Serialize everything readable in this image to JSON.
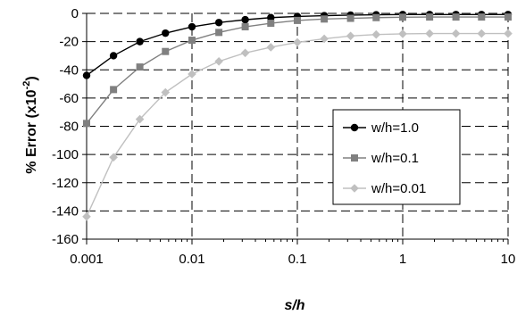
{
  "chart_data": {
    "type": "line",
    "xscale": "log",
    "xlim": [
      0.001,
      10
    ],
    "ylim": [
      -160,
      0
    ],
    "xticks": [
      0.001,
      0.01,
      0.1,
      1,
      10
    ],
    "xtick_labels": [
      "0.001",
      "0.01",
      "0.1",
      "1",
      "10"
    ],
    "yticks": [
      0,
      -20,
      -40,
      -60,
      -80,
      -100,
      -120,
      -140,
      -160
    ],
    "ytick_labels": [
      "0",
      "-20",
      "-40",
      "-60",
      "-80",
      "-100",
      "-120",
      "-140",
      "-160"
    ],
    "xlabel": "s/h",
    "ylabel_prefix": "% Error (x10",
    "ylabel_sup": "-2",
    "ylabel_suffix": ")",
    "grid": true,
    "grid_style": "dashed",
    "legend_position": "center-right",
    "x": [
      0.001,
      0.0018,
      0.0032,
      0.0056,
      0.01,
      0.018,
      0.032,
      0.056,
      0.1,
      0.18,
      0.32,
      0.56,
      1,
      1.8,
      3.2,
      5.6,
      10
    ],
    "series": [
      {
        "name": "w/h=1.0",
        "color": "#000000",
        "marker": "circle",
        "values": [
          -44,
          -30,
          -20,
          -14,
          -9.5,
          -6.5,
          -4.5,
          -3,
          -2.2,
          -1.6,
          -1.2,
          -1,
          -0.8,
          -0.8,
          -0.8,
          -0.8,
          -0.8
        ]
      },
      {
        "name": "w/h=0.1",
        "color": "#808080",
        "marker": "square",
        "values": [
          -78,
          -54,
          -38,
          -27,
          -19,
          -13.5,
          -9.5,
          -7,
          -5,
          -4,
          -3.5,
          -3,
          -2.7,
          -2.6,
          -2.6,
          -2.6,
          -2.6
        ]
      },
      {
        "name": "w/h=0.01",
        "color": "#c0c0c0",
        "marker": "diamond",
        "values": [
          -144,
          -102,
          -75,
          -56,
          -43,
          -34,
          -28,
          -24,
          -20.5,
          -18,
          -16,
          -15,
          -14.5,
          -14.3,
          -14.3,
          -14.3,
          -14.3
        ]
      }
    ]
  }
}
